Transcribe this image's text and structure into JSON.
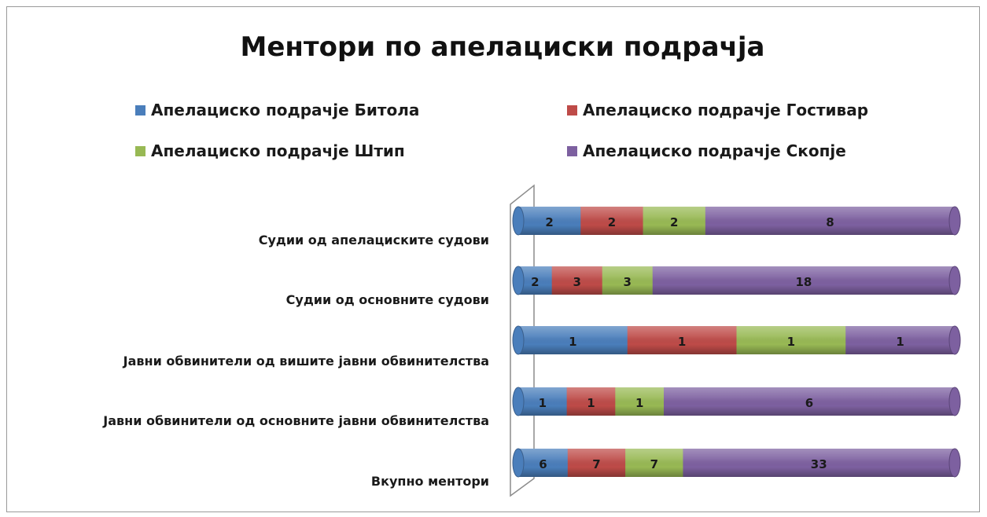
{
  "chart_data": {
    "type": "bar",
    "orientation": "horizontal",
    "stacked": "100%",
    "style": "3d-cylinder",
    "title": "Ментори по апелациски подрачја",
    "legend_position": "top",
    "categories": [
      "Судии од апелациските  судови",
      "Судии од основните  судови",
      "Јавни обвинители  од вишите  јавни обвинителства",
      "Јавни обвинители  од основните  јавни обвинителства",
      "Вкупно  ментори"
    ],
    "series": [
      {
        "name": "Апелациско подрачје Битола",
        "color": "#4a7ebb",
        "values": [
          2,
          2,
          1,
          1,
          6
        ]
      },
      {
        "name": "Апелациско подрачје Гостивар",
        "color": "#be4b48",
        "values": [
          2,
          3,
          1,
          1,
          7
        ]
      },
      {
        "name": "Апелациско подрачје Штип",
        "color": "#98b954",
        "values": [
          2,
          3,
          1,
          1,
          7
        ]
      },
      {
        "name": "Апелациско подрачје Скопје",
        "color": "#7d60a0",
        "values": [
          8,
          18,
          1,
          6,
          33
        ]
      }
    ]
  }
}
